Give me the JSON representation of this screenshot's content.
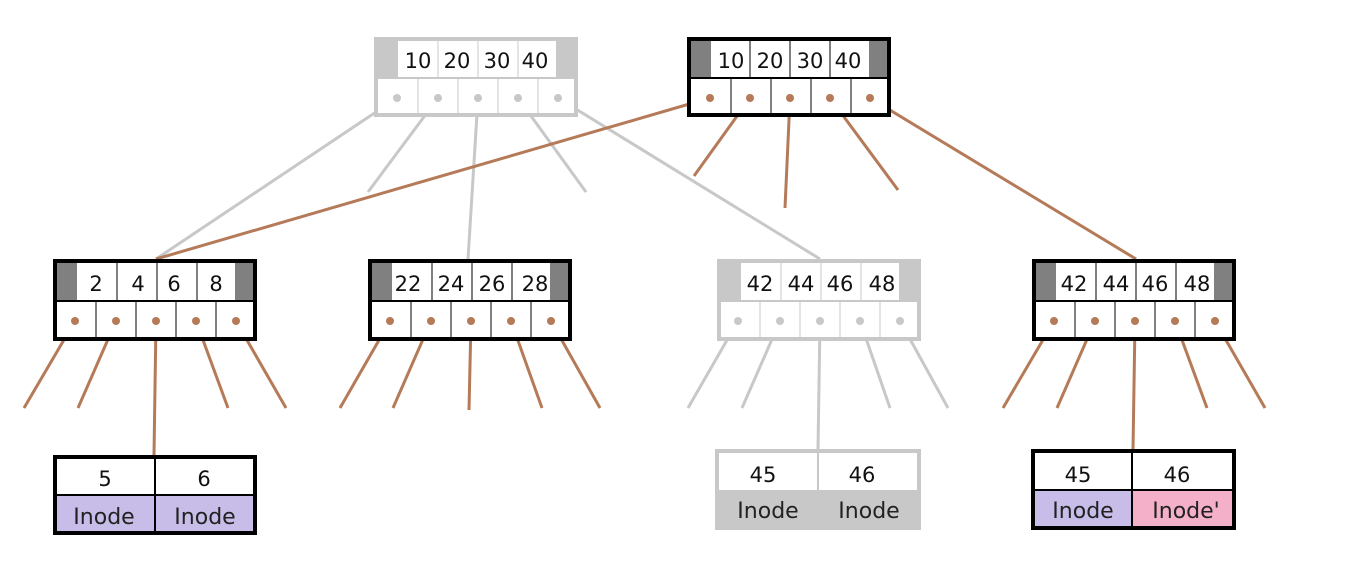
{
  "colors": {
    "new_path": "#b57a58",
    "ghost": "#c8c8c8",
    "cap_dark": "#808080",
    "inode_purple": "#c7bde8",
    "inode_pink": "#f4b0c8"
  },
  "root_old": {
    "keys": [
      "10",
      "20",
      "30",
      "40"
    ]
  },
  "root_new": {
    "keys": [
      "10",
      "20",
      "30",
      "40"
    ]
  },
  "node_a": {
    "keys": [
      "2",
      "4",
      "6",
      "8"
    ]
  },
  "node_b": {
    "keys": [
      "22",
      "24",
      "26",
      "28"
    ]
  },
  "node_c_old": {
    "keys": [
      "42",
      "44",
      "46",
      "48"
    ]
  },
  "node_c_new": {
    "keys": [
      "42",
      "44",
      "46",
      "48"
    ]
  },
  "leaf_1": {
    "keys": [
      "5",
      "6"
    ],
    "values": [
      "Inode",
      "Inode"
    ]
  },
  "leaf_2": {
    "keys": [
      "45",
      "46"
    ],
    "values": [
      "Inode",
      "Inode"
    ]
  },
  "leaf_3": {
    "keys": [
      "45",
      "46"
    ],
    "values": [
      "Inode",
      "Inode'"
    ]
  }
}
